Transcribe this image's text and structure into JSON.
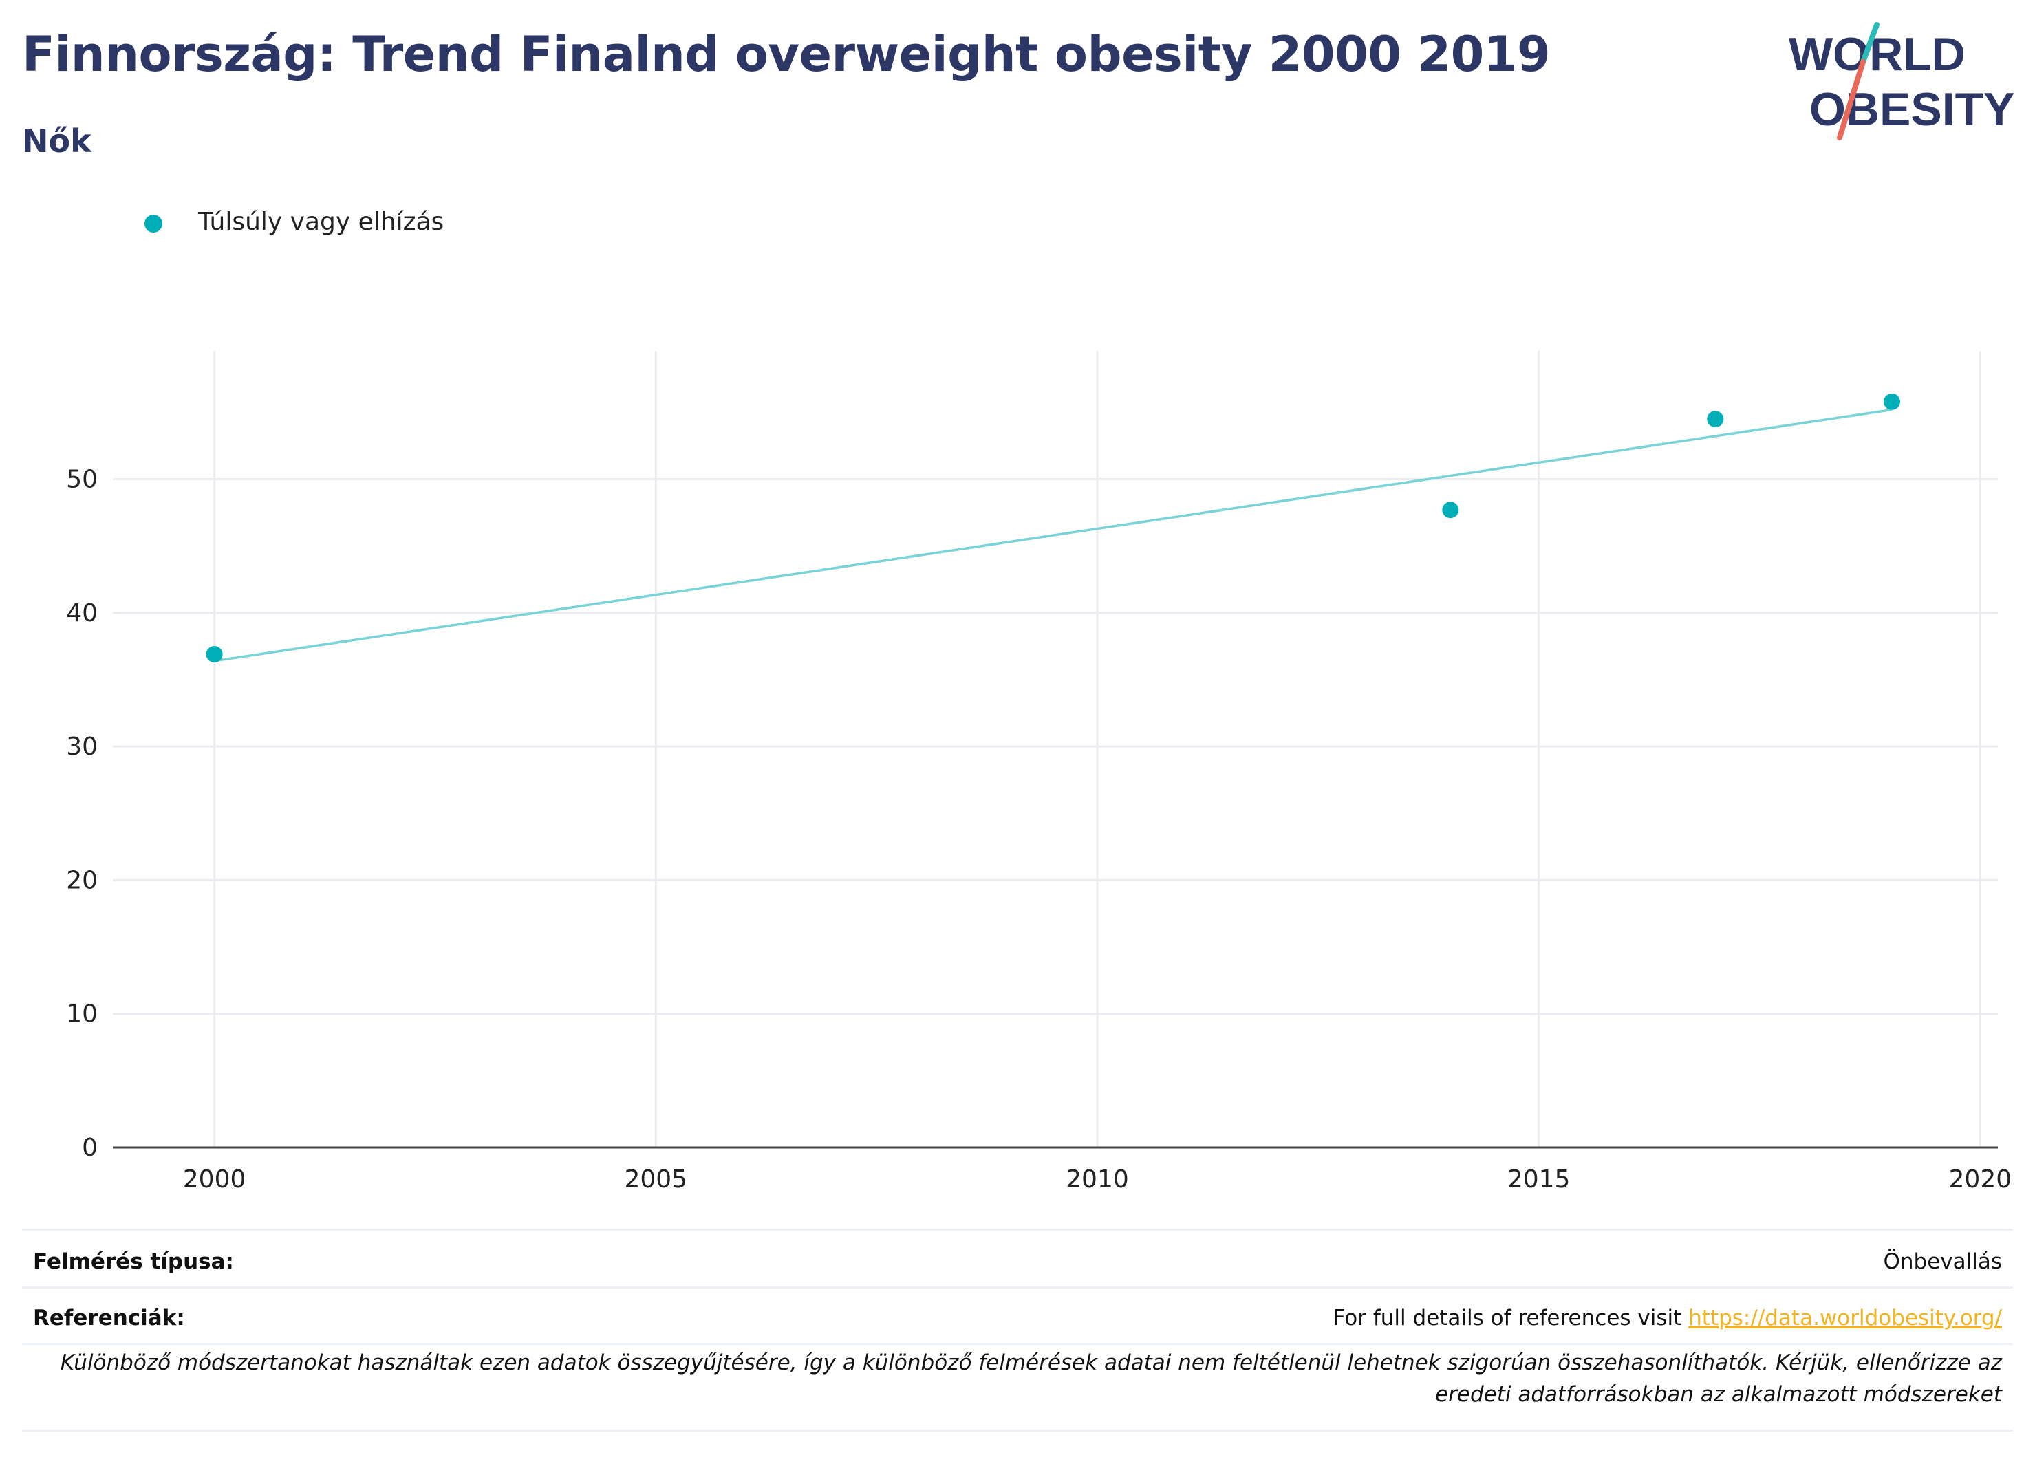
{
  "title": "Finnország: Trend Finalnd overweight obesity 2000 2019",
  "subtitle": "Nők",
  "logo": {
    "line1": "WORLD",
    "line2": "OBESITY",
    "slash_top_color": "#2bbcb8",
    "slash_bottom_color": "#e8685a",
    "text_color": "#2d3766"
  },
  "legend": {
    "label": "Túlsúly vagy elhízás",
    "color": "#00aeb8"
  },
  "chart_data": {
    "type": "scatter",
    "x_ticks": [
      2000,
      2005,
      2010,
      2015,
      2020
    ],
    "y_ticks": [
      0,
      10,
      20,
      30,
      40,
      50
    ],
    "xlim": [
      1998.85,
      2020.2
    ],
    "ylim": [
      0,
      59.6
    ],
    "grid": true,
    "legend_position": "top-left",
    "series": [
      {
        "name": "Túlsúly vagy elhízás",
        "color": "#00aeb8",
        "points": [
          {
            "x": 2000,
            "y": 36.9
          },
          {
            "x": 2014,
            "y": 47.7
          },
          {
            "x": 2017,
            "y": 54.5
          },
          {
            "x": 2019,
            "y": 55.8
          }
        ]
      }
    ],
    "trendline": {
      "color": "#7ad3d6",
      "x": [
        2000,
        2019
      ],
      "y": [
        36.4,
        55.2
      ]
    }
  },
  "footer": {
    "survey_type_label": "Felmérés típusa:",
    "survey_type_value": "Önbevallás",
    "references_label": "Referenciák:",
    "references_text": "For full details of references visit ",
    "references_link": "https://data.worldobesity.org/",
    "disclaimer": "Különböző módszertanokat használtak ezen adatok összegyűjtésére, így a különböző felmérések adatai nem feltétlenül lehetnek szigorúan összehasonlíthatók. Kérjük, ellenőrizze az eredeti adatforrásokban az alkalmazott módszereket"
  }
}
